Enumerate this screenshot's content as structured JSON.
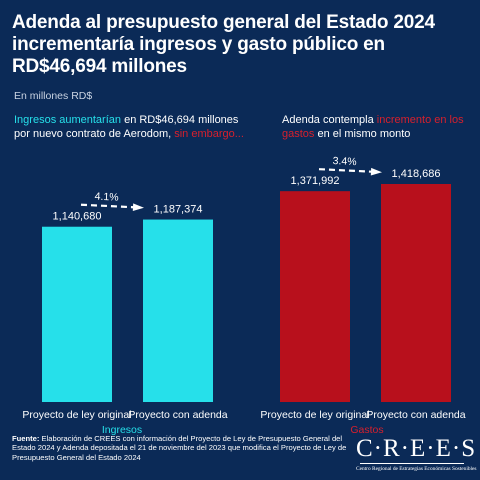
{
  "title": "Adenda al presupuesto general del Estado 2024 incrementaría ingresos y gasto público en RD$46,694 millones",
  "subtitle": "En millones RD$",
  "annotations": {
    "left": {
      "highlight": "Ingresos aumentarían",
      "middle": " en RD$46,694 millones por nuevo contrato de Aerodom, ",
      "highlight2": "sin embargo...",
      "highlight_color": "#26e0ea",
      "highlight2_color": "#d6202d"
    },
    "right": {
      "lead": "Adenda contempla ",
      "highlight": "incremento en los gastos",
      "tail": " en el mismo monto",
      "highlight_color": "#d6202d"
    }
  },
  "chart_data": [
    {
      "type": "bar",
      "group_label": "Ingresos",
      "group_label_color": "#26e0ea",
      "bar_color": "#26e0ea",
      "categories": [
        "Proyecto de ley original",
        "Proyecto con adenda"
      ],
      "values": [
        1140680,
        1187374
      ],
      "value_labels": [
        "1,140,680",
        "1,187,374"
      ],
      "growth_label": "4.1%"
    },
    {
      "type": "bar",
      "group_label": "Gastos",
      "group_label_color": "#d6202d",
      "bar_color": "#b8101c",
      "categories": [
        "Proyecto de ley original",
        "Proyecto con adenda"
      ],
      "values": [
        1371992,
        1418686
      ],
      "value_labels": [
        "1,371,992",
        "1,418,686"
      ],
      "growth_label": "3.4%"
    }
  ],
  "footer": {
    "lead": "Fuente:",
    "text": " Elaboración de CREES con información del Proyecto de Ley de Presupuesto General del Estado 2024 y Adenda  depositada el 21 de noviembre del 2023 que modifica el Proyecto de Ley de Presupuesto General del Estado 2024"
  },
  "logo": {
    "mark": "C·R·E·E·S",
    "tagline": "Centro Regional de Estrategias Económicas Sostenibles"
  },
  "colors": {
    "background": "#0b2a57",
    "text": "#ffffff"
  }
}
